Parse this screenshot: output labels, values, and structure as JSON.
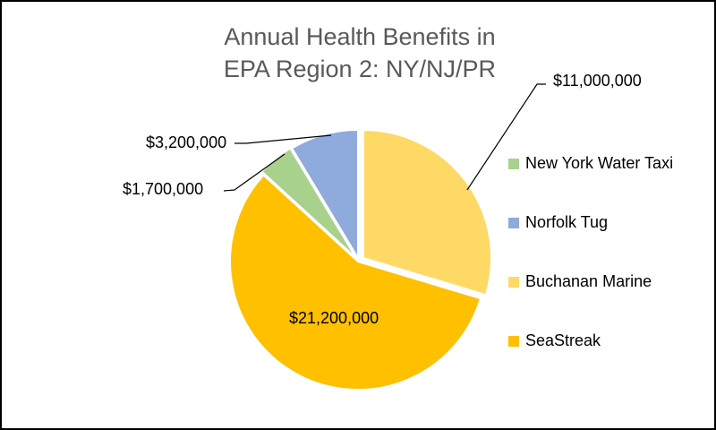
{
  "chart_data": {
    "type": "pie",
    "title": "Annual Health Benefits in EPA Region 2: NY/NJ/PR",
    "title_lines": [
      "Annual Health Benefits in",
      "EPA Region 2: NY/NJ/PR"
    ],
    "categories": [
      "New York Water Taxi",
      "Norfolk Tug",
      "Buchanan Marine",
      "SeaStreak"
    ],
    "values": [
      1700000,
      3200000,
      11000000,
      21200000
    ],
    "data_labels": [
      "$1,700,000",
      "$3,200,000",
      "$11,000,000",
      "$21,200,000"
    ],
    "colors": [
      "#A9D18E",
      "#8FAADC",
      "#FFD966",
      "#FFC000"
    ],
    "legend_position": "right",
    "xlabel": "",
    "ylabel": ""
  },
  "legend": {
    "items": [
      {
        "label": "New York Water Taxi",
        "color": "#A9D18E"
      },
      {
        "label": "Norfolk Tug",
        "color": "#8FAADC"
      },
      {
        "label": "Buchanan Marine",
        "color": "#FFD966"
      },
      {
        "label": "SeaStreak",
        "color": "#FFC000"
      }
    ]
  }
}
